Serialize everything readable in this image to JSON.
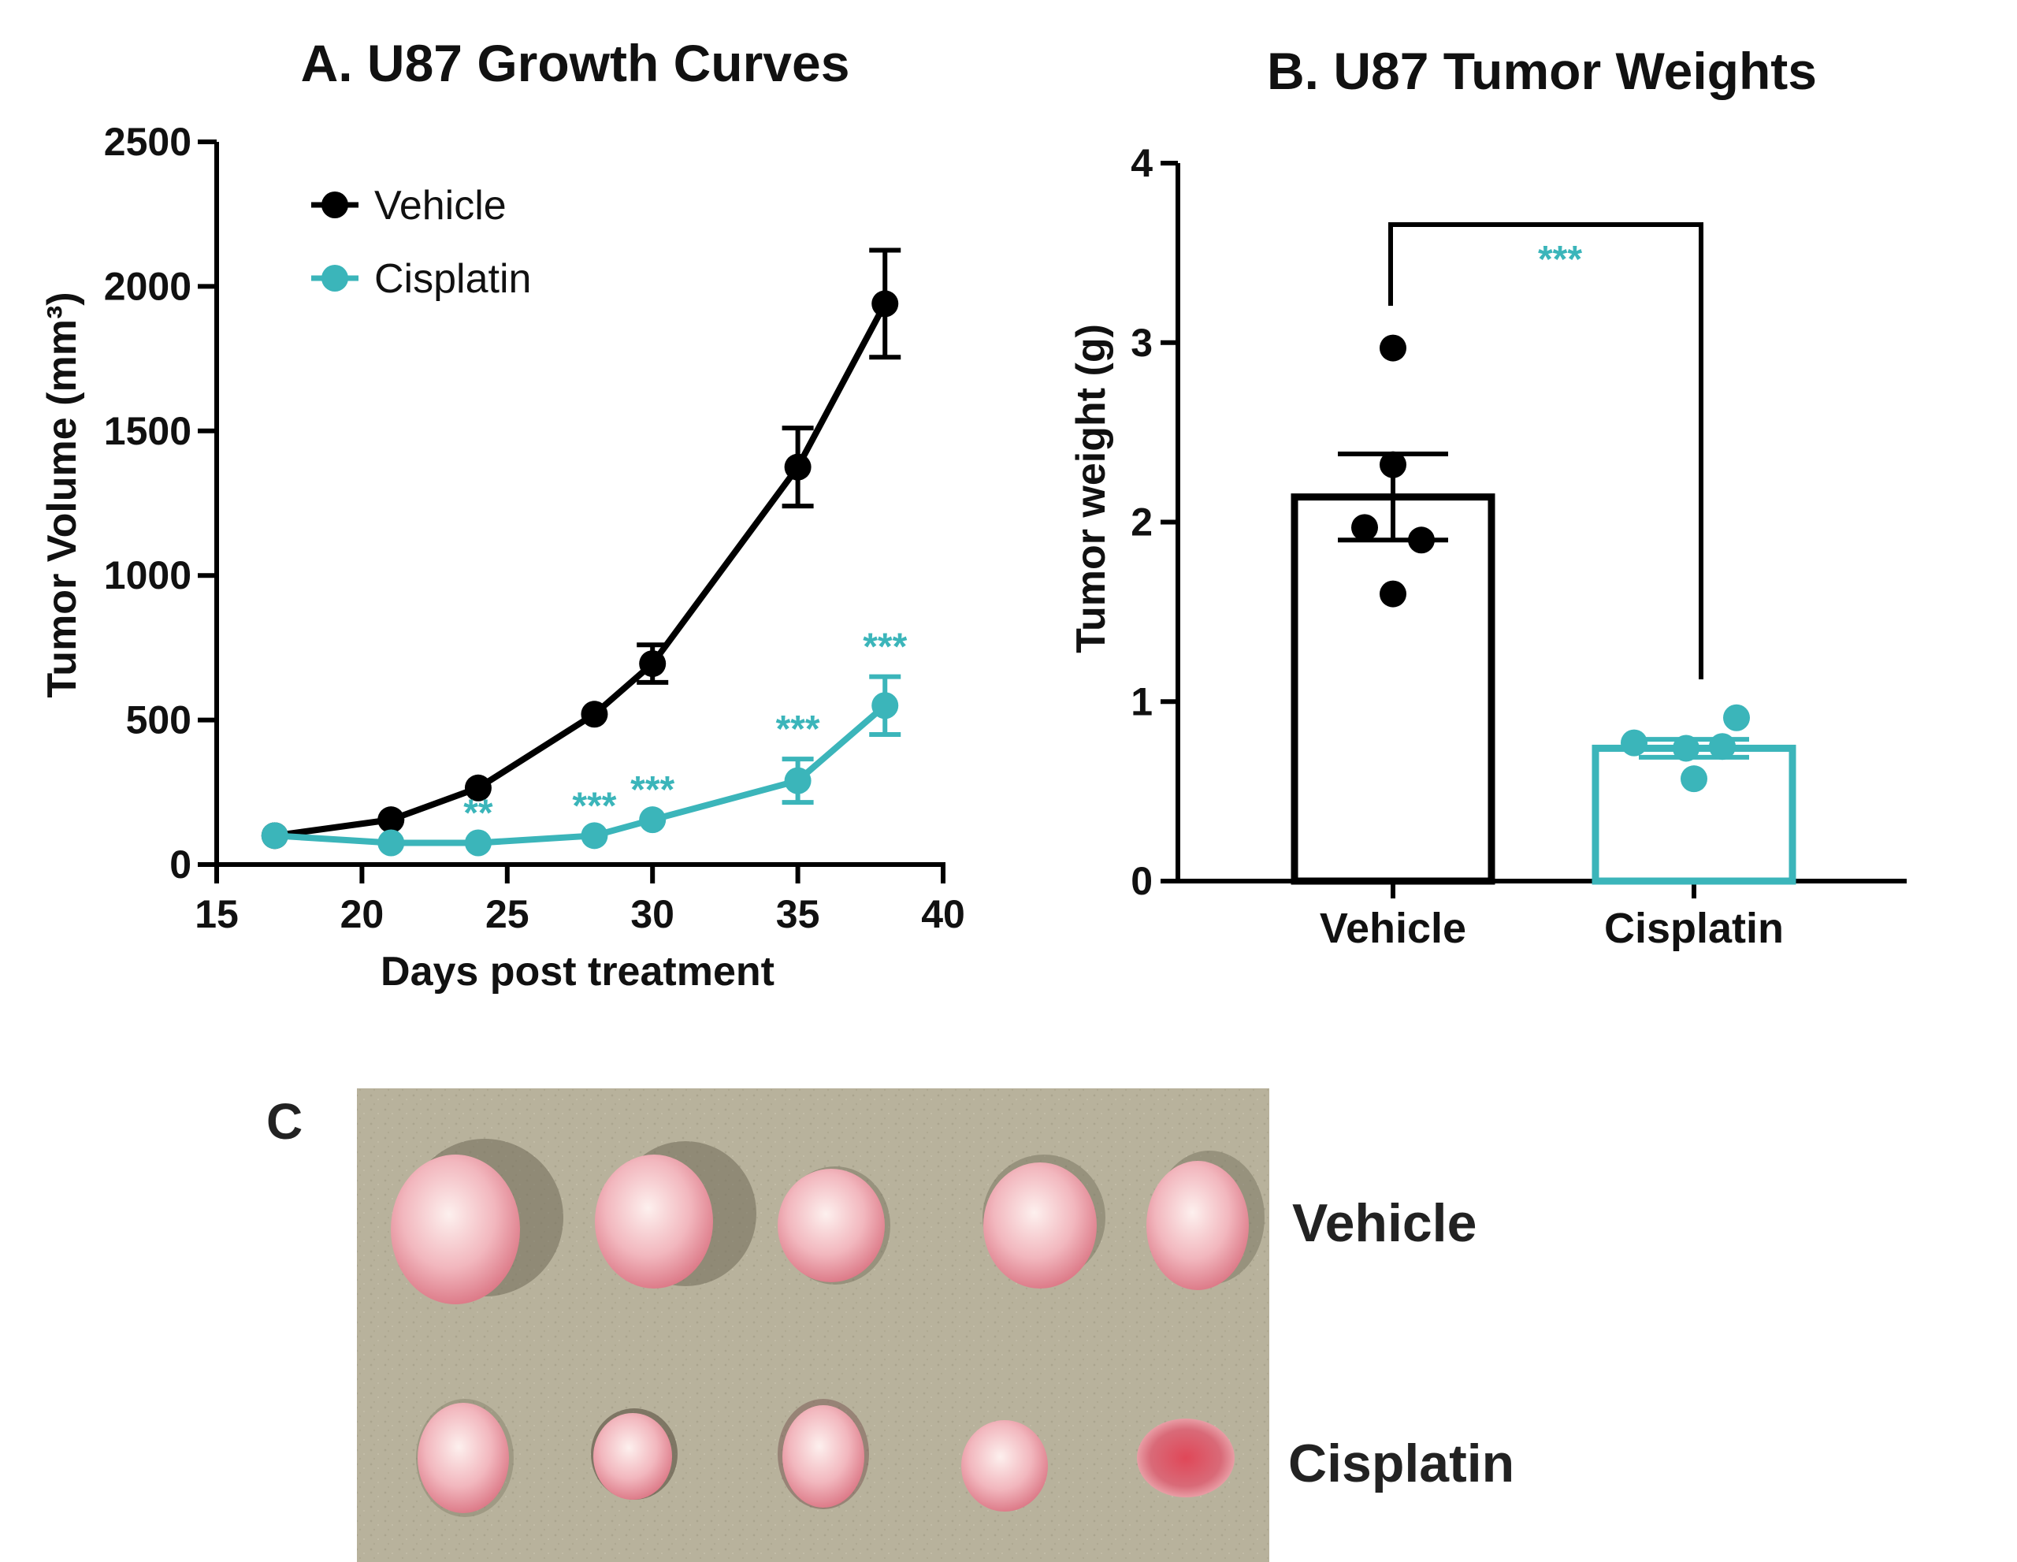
{
  "colors": {
    "vehicle": "#000000",
    "cisplatin": "#3BB5BA",
    "tray": "#B8B29C",
    "tissue": "#F2B7BE",
    "tissue_dark": "#D94A5C"
  },
  "panel_a": {
    "title": "A.  U87 Growth Curves",
    "legend": [
      "Vehicle",
      "Cisplatin"
    ],
    "significance": [
      {
        "x": 24,
        "label": "**"
      },
      {
        "x": 28,
        "label": "***"
      },
      {
        "x": 30,
        "label": "***"
      },
      {
        "x": 35,
        "label": "***"
      },
      {
        "x": 38,
        "label": "***"
      }
    ]
  },
  "panel_b": {
    "title": "B.  U87 Tumor Weights",
    "significance": "***"
  },
  "panel_c": {
    "label": "C",
    "rows": [
      "Vehicle",
      "Cisplatin"
    ],
    "tumor_count_per_row": 5
  },
  "chart_data": [
    {
      "type": "line",
      "title": "A.  U87 Growth Curves",
      "xlabel": "Days post treatment",
      "ylabel": "Tumor Volume (mm³)",
      "xlim": [
        15,
        40
      ],
      "ylim": [
        0,
        2500
      ],
      "xticks": [
        15,
        20,
        25,
        30,
        35,
        40
      ],
      "yticks": [
        0,
        500,
        1000,
        1500,
        2000,
        2500
      ],
      "legend_position": "top-left",
      "series": [
        {
          "name": "Vehicle",
          "color": "#000000",
          "x": [
            17,
            21,
            24,
            28,
            30,
            35,
            38
          ],
          "y": [
            100,
            155,
            265,
            520,
            695,
            1375,
            1940
          ],
          "error": [
            0,
            0,
            0,
            0,
            65,
            135,
            185
          ]
        },
        {
          "name": "Cisplatin",
          "color": "#3BB5BA",
          "x": [
            17,
            21,
            24,
            28,
            30,
            35,
            38
          ],
          "y": [
            100,
            75,
            75,
            100,
            155,
            290,
            550
          ],
          "error": [
            0,
            0,
            0,
            0,
            0,
            75,
            100
          ]
        }
      ]
    },
    {
      "type": "bar",
      "title": "B.  U87 Tumor Weights",
      "xlabel": "",
      "ylabel": "Tumor weight (g)",
      "ylim": [
        0,
        4
      ],
      "yticks": [
        0,
        1,
        2,
        3,
        4
      ],
      "categories": [
        "Vehicle",
        "Cisplatin"
      ],
      "values": [
        2.14,
        0.74
      ],
      "sem": [
        0.24,
        0.05
      ],
      "colors": [
        "#000000",
        "#3BB5BA"
      ],
      "points": [
        [
          2.97,
          2.32,
          1.97,
          1.9,
          1.6
        ],
        [
          0.91,
          0.77,
          0.75,
          0.74,
          0.57
        ]
      ]
    }
  ]
}
